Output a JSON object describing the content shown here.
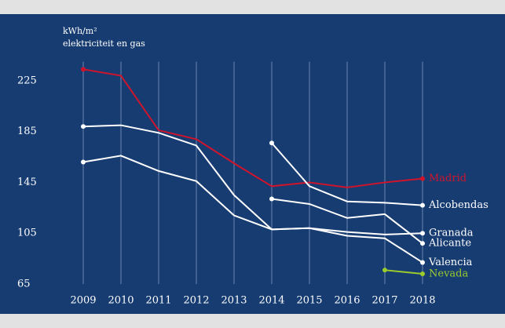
{
  "chart_data": {
    "type": "line",
    "axis_label": "kWh/m²",
    "subtitle": "elektriciteit en gas",
    "categories": [
      "2009",
      "2010",
      "2011",
      "2012",
      "2013",
      "2014",
      "2015",
      "2016",
      "2017",
      "2018"
    ],
    "ylim": [
      65,
      240
    ],
    "yticks": [
      65,
      105,
      145,
      185,
      225
    ],
    "grid": true,
    "series": [
      {
        "name": "Madrid",
        "color": "#d0142c",
        "values": [
          234,
          229,
          186,
          179,
          160,
          142,
          145,
          141,
          145,
          148
        ]
      },
      {
        "name": "Alcobendas",
        "color": "#ffffff",
        "values": [
          null,
          null,
          null,
          null,
          null,
          176,
          142,
          130,
          129,
          127
        ]
      },
      {
        "name": "Granada",
        "color": "#ffffff",
        "values": [
          189,
          190,
          184,
          174,
          135,
          108,
          109,
          106,
          104,
          105
        ]
      },
      {
        "name": "Alicante",
        "color": "#ffffff",
        "values": [
          null,
          null,
          null,
          null,
          null,
          132,
          128,
          117,
          120,
          97
        ]
      },
      {
        "name": "Valencia",
        "color": "#ffffff",
        "values": [
          161,
          166,
          154,
          146,
          119,
          108,
          109,
          103,
          101,
          82
        ]
      },
      {
        "name": "Nevada",
        "color": "#9ccc2c",
        "values": [
          null,
          null,
          null,
          null,
          null,
          null,
          null,
          null,
          76,
          73
        ]
      }
    ]
  }
}
